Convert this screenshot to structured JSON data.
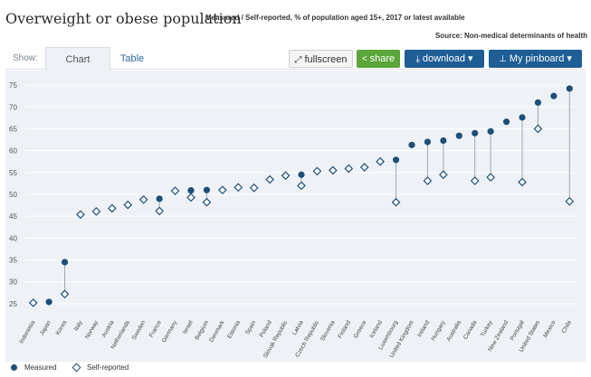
{
  "header": {
    "title": "Overweight or obese population",
    "subtitle": "Measured / Self-reported, % of population aged 15+, 2017 or latest available",
    "source": "Source: Non-medical determinants of health"
  },
  "toolbar": {
    "show_label": "Show:",
    "tab_chart": "Chart",
    "tab_table": "Table",
    "fullscreen_label": "fullscreen",
    "share_label": "share",
    "download_label": "download ▾",
    "pinboard_label": "My pinboard ▾"
  },
  "colors": {
    "measured": "#1f4e79",
    "self_reported": "#1f4e79",
    "stem": "#9aa7b4"
  },
  "chart_data": {
    "type": "scatter",
    "title": "Overweight or obese population",
    "ylim": [
      22.5,
      77.5
    ],
    "yticks": [
      25,
      30,
      35,
      40,
      45,
      50,
      55,
      60,
      65,
      70,
      75
    ],
    "categories": [
      "Indonesia",
      "Japan",
      "Korea",
      "Italy",
      "Norway",
      "Austria",
      "Netherlands",
      "Sweden",
      "France",
      "Germany",
      "Israel",
      "Belgium",
      "Denmark",
      "Estonia",
      "Spain",
      "Poland",
      "Slovak Republic",
      "Latvia",
      "Czech Republic",
      "Slovenia",
      "Finland",
      "Greece",
      "Iceland",
      "Luxembourg",
      "United Kingdom",
      "Ireland",
      "Hungary",
      "Australia",
      "Canada",
      "Turkey",
      "New Zealand",
      "Portugal",
      "United States",
      "Mexico",
      "Chile"
    ],
    "series": [
      {
        "name": "Measured",
        "marker": "circle",
        "values": [
          null,
          25.4,
          34.5,
          null,
          null,
          null,
          null,
          null,
          49,
          null,
          50.9,
          51,
          null,
          null,
          null,
          null,
          null,
          54.5,
          null,
          null,
          null,
          null,
          null,
          57.9,
          61.3,
          62,
          62.3,
          63.4,
          64,
          64.4,
          66.6,
          67.6,
          71,
          72.5,
          74.2
        ]
      },
      {
        "name": "Self-reported",
        "marker": "diamond",
        "values": [
          25.2,
          null,
          27.2,
          45.4,
          46.1,
          46.8,
          47.6,
          48.8,
          46.2,
          50.8,
          49.3,
          48.2,
          51,
          51.6,
          51.5,
          53.4,
          54.3,
          52,
          55.3,
          55.5,
          55.9,
          56.2,
          57.5,
          48.2,
          null,
          53.1,
          54.5,
          null,
          53.1,
          53.9,
          null,
          52.8,
          65,
          null,
          48.4
        ]
      }
    ],
    "legend": [
      "Measured",
      "Self-reported"
    ],
    "legend_position": "bottom-left",
    "grid": true
  }
}
